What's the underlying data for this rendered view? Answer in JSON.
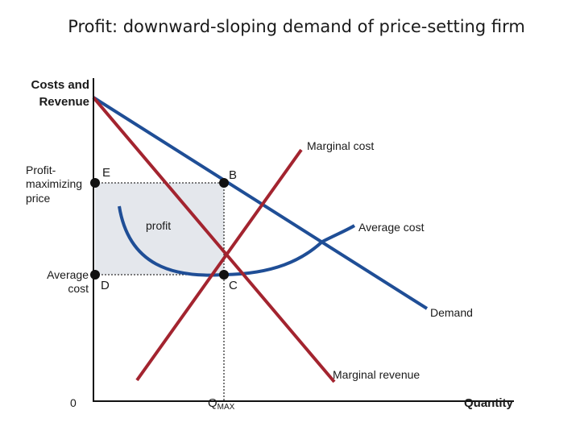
{
  "title": "Profit:  downward-sloping demand of price-setting firm",
  "axes": {
    "y_label_line1": "Costs and",
    "y_label_line2": "Revenue",
    "x_label": "Quantity",
    "origin": "0",
    "qmax_main": "Q",
    "qmax_sub": "MAX"
  },
  "price_labels": {
    "profit_max_line1": "Profit-",
    "profit_max_line2": "maximizing",
    "profit_max_line3": "price",
    "avg_cost_line1": "Average",
    "avg_cost_line2": "cost"
  },
  "points": {
    "E": "E",
    "B": "B",
    "D": "D",
    "C": "C"
  },
  "curves": {
    "marginal_cost": "Marginal cost",
    "average_cost": "Average cost",
    "demand": "Demand",
    "marginal_revenue": "Marginal revenue",
    "profit": "profit"
  },
  "colors": {
    "blue": "#1f4e96",
    "red": "#a3242f",
    "profit_fill": "#e4e7ec"
  }
}
